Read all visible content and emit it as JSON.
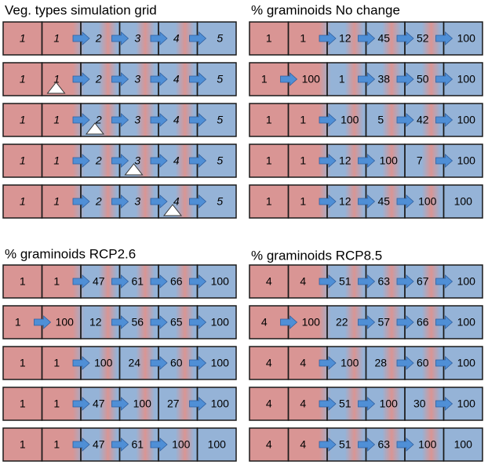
{
  "panels": [
    {
      "title": "Veg. types simulation grid",
      "italic": true,
      "rows": [
        [
          1,
          1,
          2,
          3,
          4,
          5
        ],
        [
          1,
          1,
          2,
          3,
          4,
          5
        ],
        [
          1,
          1,
          2,
          3,
          4,
          5
        ],
        [
          1,
          1,
          2,
          3,
          4,
          5
        ],
        [
          1,
          1,
          2,
          3,
          4,
          5
        ]
      ]
    },
    {
      "title": "% graminoids  No change",
      "rows": [
        [
          1,
          1,
          12,
          45,
          52,
          100
        ],
        [
          1,
          100,
          1,
          38,
          50,
          100
        ],
        [
          1,
          1,
          100,
          5,
          42,
          100
        ],
        [
          1,
          1,
          12,
          100,
          7,
          100
        ],
        [
          1,
          1,
          12,
          45,
          100,
          100
        ]
      ]
    },
    {
      "title": "% graminoids  RCP2.6",
      "rows": [
        [
          1,
          1,
          47,
          61,
          66,
          100
        ],
        [
          1,
          100,
          12,
          56,
          65,
          100
        ],
        [
          1,
          1,
          100,
          24,
          60,
          100
        ],
        [
          1,
          1,
          47,
          100,
          27,
          100
        ],
        [
          1,
          1,
          47,
          61,
          100,
          100
        ]
      ]
    },
    {
      "title": "% graminoids  RCP8.5",
      "rows": [
        [
          4,
          4,
          51,
          63,
          67,
          100
        ],
        [
          4,
          100,
          22,
          57,
          66,
          100
        ],
        [
          4,
          4,
          100,
          28,
          60,
          100
        ],
        [
          4,
          4,
          51,
          100,
          30,
          100
        ],
        [
          4,
          4,
          51,
          63,
          100,
          100
        ]
      ]
    }
  ]
}
